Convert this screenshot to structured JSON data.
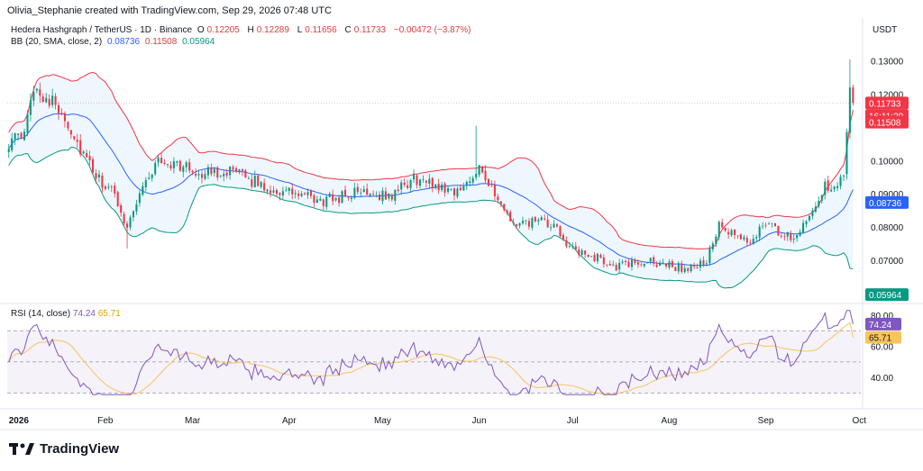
{
  "header": {
    "attribution": "Olivia_Stephanie created with TradingView.com, Sep 29, 2026 07:48 UTC"
  },
  "legend": {
    "symbol": "Hedera Hashgraph / TetherUS · 1D · Binance",
    "o_label": "O",
    "o_value": "0.12205",
    "h_label": "H",
    "h_value": "0.12289",
    "l_label": "L",
    "l_value": "0.11656",
    "c_label": "C",
    "c_value": "0.11733",
    "change": "−0.00472 (−3.87%)",
    "bb_label": "BB (20, SMA, close, 2)",
    "bb_basis": "0.08736",
    "bb_upper": "0.11508",
    "bb_lower": "0.05964"
  },
  "currency": "USDT",
  "rsi_legend": {
    "label": "RSI (14, close)",
    "rsi": "74.24",
    "rsi_ma": "65.71"
  },
  "price_axis": {
    "ticks": [
      "0.13000",
      "0.12000",
      "0.10000",
      "0.09000",
      "0.08000",
      "0.07000"
    ],
    "tag_close": "0.11733",
    "tag_countdown": "16:11:29",
    "tag_upper": "0.11508",
    "tag_basis": "0.08736",
    "tag_lower": "0.05964"
  },
  "rsi_axis": {
    "ticks": [
      "80.00",
      "60.00",
      "40.00"
    ],
    "tag_rsi": "74.24",
    "tag_ma": "65.71"
  },
  "time_axis": [
    "2026",
    "Feb",
    "Mar",
    "Apr",
    "May",
    "Jun",
    "Jul",
    "Aug",
    "Sep",
    "Oct"
  ],
  "footer": {
    "brand": "TradingView"
  },
  "colors": {
    "up": "#089981",
    "down": "#f23645",
    "bb_upper": "#f23645",
    "bb_basis": "#2962ff",
    "bb_lower": "#089981",
    "bb_fill": "#e3f2fd",
    "rsi": "#7e57c2",
    "rsi_ma": "#f7c45d"
  },
  "chart_data": [
    {
      "type": "candlestick",
      "title": "Hedera Hashgraph / TetherUS · 1D · Binance",
      "ylabel": "USDT",
      "ylim": [
        0.0575,
        0.1375
      ],
      "x_range": [
        "2026-01-01",
        "2026-09-29"
      ],
      "days": 272,
      "keypoints": [
        {
          "day": 0,
          "close": 0.1055
        },
        {
          "day": 5,
          "close": 0.1075
        },
        {
          "day": 8,
          "close": 0.1225
        },
        {
          "day": 12,
          "close": 0.119
        },
        {
          "day": 17,
          "close": 0.115
        },
        {
          "day": 22,
          "close": 0.105
        },
        {
          "day": 28,
          "close": 0.095
        },
        {
          "day": 34,
          "close": 0.0895
        },
        {
          "day": 38,
          "close": 0.08
        },
        {
          "day": 42,
          "close": 0.0905
        },
        {
          "day": 48,
          "close": 0.1
        },
        {
          "day": 55,
          "close": 0.0985
        },
        {
          "day": 62,
          "close": 0.096
        },
        {
          "day": 70,
          "close": 0.097
        },
        {
          "day": 78,
          "close": 0.094
        },
        {
          "day": 85,
          "close": 0.091
        },
        {
          "day": 92,
          "close": 0.09
        },
        {
          "day": 100,
          "close": 0.0875
        },
        {
          "day": 108,
          "close": 0.0895
        },
        {
          "day": 115,
          "close": 0.091
        },
        {
          "day": 122,
          "close": 0.089
        },
        {
          "day": 130,
          "close": 0.0945
        },
        {
          "day": 137,
          "close": 0.0925
        },
        {
          "day": 145,
          "close": 0.0905
        },
        {
          "day": 151,
          "close": 0.099
        },
        {
          "day": 157,
          "close": 0.087
        },
        {
          "day": 163,
          "close": 0.08
        },
        {
          "day": 170,
          "close": 0.082
        },
        {
          "day": 176,
          "close": 0.079
        },
        {
          "day": 182,
          "close": 0.072
        },
        {
          "day": 188,
          "close": 0.071
        },
        {
          "day": 195,
          "close": 0.068
        },
        {
          "day": 203,
          "close": 0.0695
        },
        {
          "day": 210,
          "close": 0.069
        },
        {
          "day": 218,
          "close": 0.067
        },
        {
          "day": 224,
          "close": 0.07
        },
        {
          "day": 228,
          "close": 0.08
        },
        {
          "day": 233,
          "close": 0.077
        },
        {
          "day": 238,
          "close": 0.0755
        },
        {
          "day": 243,
          "close": 0.082
        },
        {
          "day": 247,
          "close": 0.078
        },
        {
          "day": 252,
          "close": 0.077
        },
        {
          "day": 257,
          "close": 0.084
        },
        {
          "day": 262,
          "close": 0.092
        },
        {
          "day": 266,
          "close": 0.0905
        },
        {
          "day": 268,
          "close": 0.097
        },
        {
          "day": 270,
          "close": 0.122
        },
        {
          "day": 271,
          "close": 0.1173
        }
      ],
      "last_candle": {
        "open": 0.12205,
        "high": 0.12289,
        "low": 0.11656,
        "close": 0.11733
      },
      "bollinger": {
        "period": 20,
        "stddev": 2,
        "basis": 0.08736,
        "upper": 0.11508,
        "lower": 0.05964
      }
    },
    {
      "type": "line",
      "title": "RSI (14, close)",
      "ylim": [
        28,
        84
      ],
      "bands": [
        70,
        50,
        30
      ],
      "series": [
        {
          "name": "RSI",
          "last": 74.24
        },
        {
          "name": "RSI MA",
          "last": 65.71
        }
      ]
    }
  ]
}
